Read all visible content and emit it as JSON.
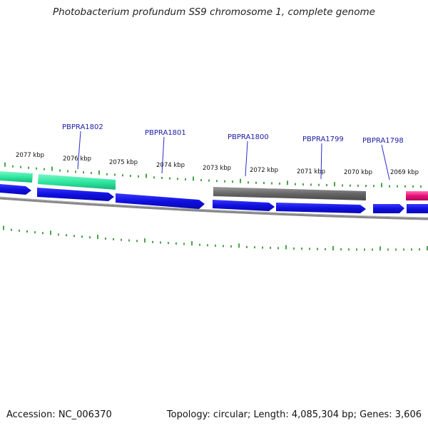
{
  "title": "Photobacterium profundum SS9 chromosome 1, complete genome",
  "footer": {
    "accession": "Accession: NC_006370",
    "summary": "Topology: circular; Length: 4,085,304 bp; Genes: 3,606"
  },
  "ticks": [
    {
      "label": "2077 kbp"
    },
    {
      "label": "2076 kbp"
    },
    {
      "label": "2075 kbp"
    },
    {
      "label": "2074 kbp"
    },
    {
      "label": "2073 kbp"
    },
    {
      "label": "2072 kbp"
    },
    {
      "label": "2071 kbp"
    },
    {
      "label": "2070 kbp"
    },
    {
      "label": "2069 kbp"
    }
  ],
  "genes": [
    {
      "label": "PBPRA1802"
    },
    {
      "label": "PBPRA1801"
    },
    {
      "label": "PBPRA1800"
    },
    {
      "label": "PBPRA1799"
    },
    {
      "label": "PBPRA1798"
    }
  ],
  "colors": {
    "cds_forward": "#1010e0",
    "feature_green": "#2ee8a0",
    "feature_gray": "#666666",
    "feature_pink": "#e8107a",
    "tick": "#1f8a1f",
    "backbone": "#808080"
  }
}
